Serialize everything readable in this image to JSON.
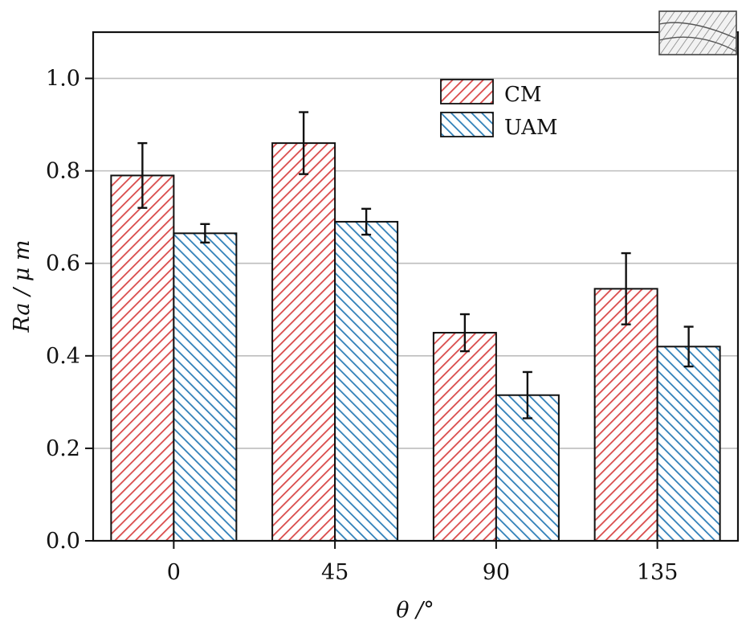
{
  "chart_data": {
    "type": "bar",
    "categories": [
      "0",
      "45",
      "90",
      "135"
    ],
    "xlabel": "θ /°",
    "ylabel": "Ra / μ m",
    "ylim": [
      0,
      1.1
    ],
    "yticks": [
      "0.0",
      "0.2",
      "0.4",
      "0.6",
      "0.8",
      "1.0"
    ],
    "grid": true,
    "legend_position": "top-right",
    "series": [
      {
        "name": "CM",
        "color": "#d94a4a",
        "hatch": "diagonal-forward",
        "values": [
          0.79,
          0.86,
          0.45,
          0.545
        ],
        "errors": [
          0.07,
          0.067,
          0.04,
          0.077
        ]
      },
      {
        "name": "UAM",
        "color": "#2f7fb8",
        "hatch": "diagonal-backward",
        "values": [
          0.665,
          0.69,
          0.315,
          0.42
        ],
        "errors": [
          0.02,
          0.028,
          0.05,
          0.043
        ]
      }
    ]
  },
  "inset_icon": "hatched-tool-schematic-icon"
}
